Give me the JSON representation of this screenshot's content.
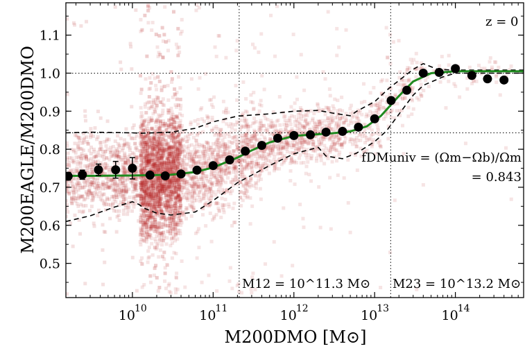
{
  "chart_data": {
    "type": "scatter",
    "title": "",
    "xlabel": "M200DMO [M⊙]",
    "ylabel": "M200EAGLE/M200DMO",
    "xscale": "log",
    "xlim": [
      1500000000.0,
      700000000000000.0
    ],
    "ylim": [
      0.41,
      1.185
    ],
    "x_ticks": [
      10000000000.0,
      100000000000.0,
      1000000000000.0,
      10000000000000.0,
      100000000000000.0
    ],
    "x_tick_labels": [
      "10",
      "10",
      "10",
      "10",
      "10"
    ],
    "x_tick_exponents": [
      "10",
      "11",
      "12",
      "13",
      "14"
    ],
    "y_ticks": [
      0.5,
      0.6,
      0.7,
      0.8,
      0.9,
      1.0,
      1.1
    ],
    "y_tick_labels": [
      "0.5",
      "0.6",
      "0.7",
      "0.8",
      "0.9",
      "1.0",
      "1.1"
    ],
    "grid": false,
    "colors": {
      "scatter": "#b22222",
      "fit": "#1f8a1f",
      "median": "#000000",
      "percentile": "#000000",
      "reference": "#000000"
    },
    "series": [
      {
        "kind": "median-points",
        "x": [
          1600000000.0,
          2400000000.0,
          3800000000.0,
          6200000000.0,
          10000000000.0,
          16500000000.0,
          25500000000.0,
          40000000000.0,
          63000000000.0,
          100000000000.0,
          160000000000.0,
          250000000000.0,
          400000000000.0,
          630000000000.0,
          1000000000000.0,
          1600000000000.0,
          2500000000000.0,
          4000000000000.0,
          6300000000000.0,
          10000000000000.0,
          16000000000000.0,
          25000000000000.0,
          40000000000000.0,
          63000000000000.0,
          100000000000000.0,
          160000000000000.0,
          250000000000000.0,
          400000000000000.0
        ],
        "y": [
          0.729,
          0.733,
          0.746,
          0.746,
          0.75,
          0.732,
          0.73,
          0.735,
          0.745,
          0.757,
          0.772,
          0.795,
          0.81,
          0.829,
          0.836,
          0.838,
          0.845,
          0.847,
          0.858,
          0.88,
          0.928,
          0.955,
          1.0,
          1.002,
          1.012,
          0.994,
          0.985,
          0.982
        ],
        "y_err": [
          0.01,
          0.012,
          0.015,
          0.022,
          0.028,
          0.006,
          0.005,
          0.004,
          0.003,
          0.003,
          0.003,
          0.003,
          0.003,
          0.003,
          0.003,
          0.003,
          0.004,
          0.004,
          0.005,
          0.006,
          0.006,
          0.007,
          0.006,
          0.005,
          0.004,
          0.0,
          0.0,
          0.0
        ]
      },
      {
        "kind": "fit",
        "x": [
          1500000000.0,
          3000000000.0,
          10000000000.0,
          30000000000.0,
          60000000000.0,
          100000000000.0,
          200000000000.0,
          300000000000.0,
          500000000000.0,
          1000000000000.0,
          3000000000000.0,
          5000000000000.0,
          8000000000000.0,
          12000000000000.0,
          20000000000000.0,
          30000000000000.0,
          50000000000000.0,
          100000000000000.0,
          700000000000000.0
        ],
        "y": [
          0.73,
          0.73,
          0.731,
          0.733,
          0.74,
          0.752,
          0.778,
          0.797,
          0.818,
          0.835,
          0.842,
          0.847,
          0.86,
          0.888,
          0.94,
          0.978,
          1.0,
          1.005,
          1.005
        ]
      },
      {
        "kind": "upper-percentile",
        "x": [
          1500000000.0,
          3000000000.0,
          10000000000.0,
          13000000000.0,
          30000000000.0,
          60000000000.0,
          100000000000.0,
          200000000000.0,
          500000000000.0,
          1000000000000.0,
          2000000000000.0,
          3000000000000.0,
          5000000000000.0,
          6000000000000.0,
          10000000000000.0,
          15000000000000.0,
          30000000000000.0,
          40000000000000.0,
          60000000000000.0,
          100000000000000.0,
          700000000000000.0
        ],
        "y": [
          0.843,
          0.845,
          0.843,
          0.842,
          0.845,
          0.855,
          0.872,
          0.887,
          0.893,
          0.9,
          0.902,
          0.895,
          0.888,
          0.9,
          0.925,
          0.96,
          1.01,
          1.025,
          1.01,
          1.008,
          1.008
        ]
      },
      {
        "kind": "lower-percentile",
        "x": [
          1500000000.0,
          3000000000.0,
          6000000000.0,
          10000000000.0,
          12000000000.0,
          14000000000.0,
          20000000000.0,
          30000000000.0,
          60000000000.0,
          100000000000.0,
          200000000000.0,
          500000000000.0,
          1000000000000.0,
          2000000000000.0,
          2500000000000.0,
          4000000000000.0,
          6000000000000.0,
          10000000000000.0,
          14000000000000.0,
          20000000000000.0,
          30000000000000.0,
          40000000000000.0,
          70000000000000.0,
          100000000000000.0,
          700000000000000.0
        ],
        "y": [
          0.61,
          0.625,
          0.648,
          0.662,
          0.655,
          0.645,
          0.632,
          0.627,
          0.635,
          0.665,
          0.712,
          0.757,
          0.788,
          0.805,
          0.782,
          0.775,
          0.79,
          0.82,
          0.848,
          0.892,
          0.942,
          0.968,
          0.99,
          1.0,
          1.0
        ]
      }
    ],
    "reference_lines": {
      "vertical_x": [
        210000000000.0,
        15800000000000.0
      ],
      "horizontal_y": [
        1.0,
        0.843
      ]
    },
    "annotations": {
      "redshift": "z = 0",
      "f_dm_univ": "fDMuniv = (Ωm−Ωb)/Ωm",
      "f_dm_value": "= 0.843",
      "m12": "M12 = 10^11.3 M⊙",
      "m23": "M23 = 10^13.2 M⊙"
    }
  }
}
